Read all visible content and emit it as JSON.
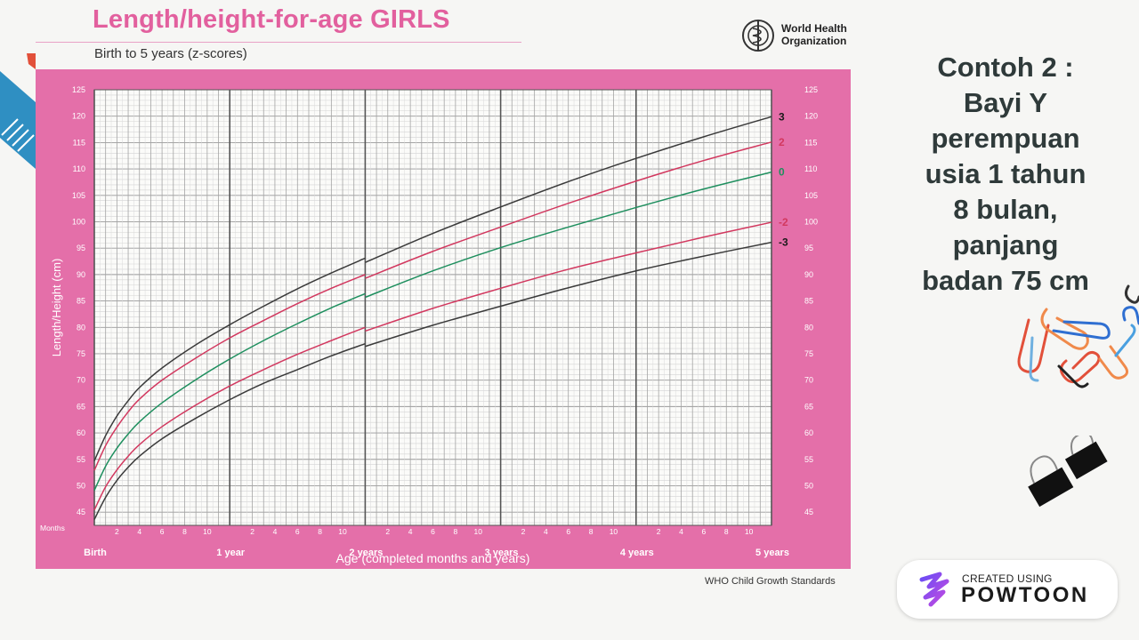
{
  "slide": {
    "side_text": "Contoh 2 :\nBayi Y\nperempuan\nusia 1 tahun\n8 bulan,\npanjang\nbadan 75 cm",
    "footer_source": "WHO Child Growth Standards",
    "logo_text_line1": "World Health",
    "logo_text_line2": "Organization",
    "badge": {
      "created_label": "CREATED USING",
      "brand": "POWTOON"
    }
  },
  "chart_data": {
    "type": "line",
    "title": "Length/height-for-age GIRLS",
    "subtitle": "Birth to 5 years (z-scores)",
    "xlabel": "Age (completed months and years)",
    "ylabel": "Length/Height (cm)",
    "x_unit_label": "Months",
    "xlim": [
      0,
      60
    ],
    "ylim": [
      42.5,
      125
    ],
    "y_ticks": [
      45,
      50,
      55,
      60,
      65,
      70,
      75,
      80,
      85,
      90,
      95,
      100,
      105,
      110,
      115,
      120,
      125
    ],
    "x_major": [
      {
        "month": 0,
        "label": "Birth"
      },
      {
        "month": 12,
        "label": "1 year"
      },
      {
        "month": 24,
        "label": "2 years"
      },
      {
        "month": 36,
        "label": "3 years"
      },
      {
        "month": 48,
        "label": "4 years"
      },
      {
        "month": 60,
        "label": "5 years"
      }
    ],
    "x_minor_labels": [
      "2",
      "4",
      "6",
      "8",
      "10"
    ],
    "grid": true,
    "colors": {
      "panel": "#e46fa9",
      "plot_bg": "#fbfbf9",
      "sd3": "#3a3a3a",
      "sd2": "#d2385f",
      "median": "#1e8f5e"
    },
    "series": [
      {
        "name": "3",
        "color_key": "sd3",
        "x": [
          0,
          1,
          2,
          3,
          4,
          6,
          9,
          12,
          15,
          18,
          21,
          24,
          24.01,
          30,
          36,
          42,
          48,
          54,
          60
        ],
        "y": [
          54.7,
          59.5,
          63.2,
          66.1,
          68.6,
          72.3,
          76.7,
          80.5,
          84.0,
          87.3,
          90.3,
          93.1,
          92.3,
          97.8,
          102.8,
          107.6,
          112.0,
          116.1,
          119.9
        ]
      },
      {
        "name": "2",
        "color_key": "sd2",
        "x": [
          0,
          1,
          2,
          3,
          4,
          6,
          9,
          12,
          15,
          18,
          21,
          24,
          24.01,
          30,
          36,
          42,
          48,
          54,
          60
        ],
        "y": [
          52.9,
          57.6,
          61.1,
          64.0,
          66.4,
          70.0,
          74.2,
          78.0,
          81.3,
          84.5,
          87.4,
          90.0,
          89.3,
          94.4,
          99.0,
          103.5,
          107.7,
          111.6,
          115.1
        ]
      },
      {
        "name": "0",
        "color_key": "median",
        "x": [
          0,
          1,
          2,
          3,
          4,
          6,
          9,
          12,
          15,
          18,
          21,
          24,
          24.01,
          30,
          36,
          42,
          48,
          54,
          60
        ],
        "y": [
          49.1,
          53.7,
          57.1,
          59.8,
          62.1,
          65.7,
          70.1,
          74.0,
          77.5,
          80.7,
          83.7,
          86.4,
          85.7,
          90.7,
          95.1,
          99.0,
          102.7,
          106.2,
          109.4
        ]
      },
      {
        "name": "-2",
        "color_key": "sd2",
        "x": [
          0,
          1,
          2,
          3,
          4,
          6,
          9,
          12,
          15,
          18,
          21,
          24,
          24.01,
          30,
          36,
          42,
          48,
          54,
          60
        ],
        "y": [
          45.4,
          49.8,
          53.0,
          55.6,
          57.8,
          61.2,
          65.3,
          68.9,
          72.0,
          74.9,
          77.5,
          80.0,
          79.3,
          83.6,
          87.4,
          91.0,
          94.1,
          97.1,
          99.9
        ]
      },
      {
        "name": "-3",
        "color_key": "sd3",
        "x": [
          0,
          1,
          2,
          3,
          4,
          6,
          9,
          12,
          15,
          18,
          21,
          24,
          24.01,
          30,
          36,
          42,
          48,
          54,
          60
        ],
        "y": [
          43.6,
          47.8,
          51.0,
          53.5,
          55.6,
          58.9,
          62.8,
          66.3,
          69.4,
          72.0,
          74.6,
          76.9,
          76.4,
          80.4,
          84.0,
          87.5,
          90.7,
          93.5,
          96.1
        ]
      }
    ]
  }
}
